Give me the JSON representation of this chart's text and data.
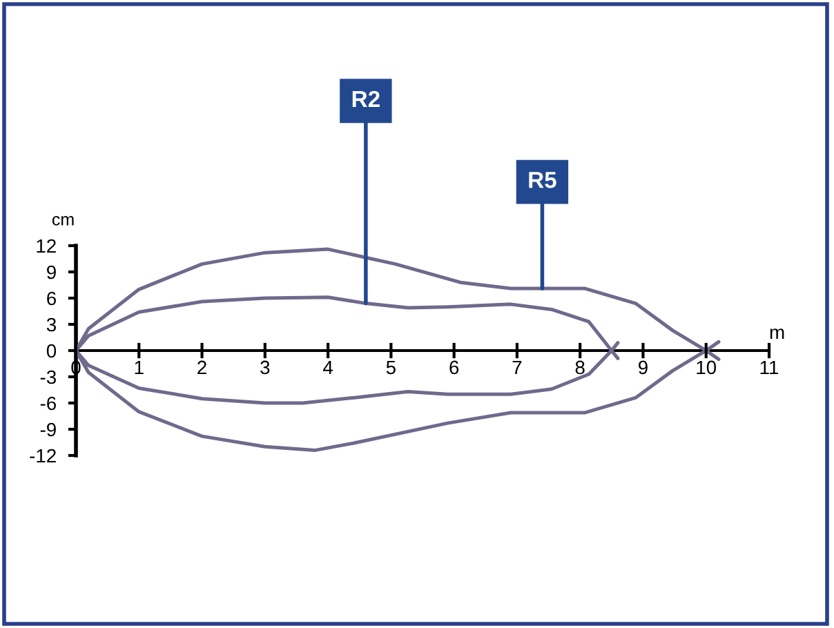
{
  "chart_data": {
    "type": "line",
    "xlabel": "m",
    "ylabel": "cm",
    "xlim": [
      0,
      11
    ],
    "ylim": [
      -12,
      12
    ],
    "xticks": [
      0,
      1,
      2,
      3,
      4,
      5,
      6,
      7,
      8,
      9,
      10,
      11
    ],
    "yticks": [
      -12,
      -9,
      -6,
      -3,
      0,
      3,
      6,
      9,
      12
    ],
    "annotations": [
      {
        "text": "R2",
        "x": 4.6,
        "y": 5.4
      },
      {
        "text": "R5",
        "x": 7.4,
        "y": 7.1
      }
    ],
    "series": [
      {
        "color": "#6f6a8c",
        "x": [
          0,
          0.2,
          1,
          2,
          3,
          4,
          4.6,
          5.27,
          5.9,
          6.9,
          7.55,
          8.14,
          8.5,
          8.6
        ],
        "values": [
          0,
          1.7,
          4.4,
          5.6,
          6.0,
          6.1,
          5.4,
          4.9,
          5.0,
          5.3,
          4.7,
          3.3,
          0,
          -0.9
        ]
      },
      {
        "color": "#6f6a8c",
        "x": [
          0,
          0.2,
          1,
          2,
          3,
          3.6,
          4.4,
          5.27,
          5.9,
          6.9,
          7.55,
          8.14,
          8.5,
          8.6
        ],
        "values": [
          0,
          -1.7,
          -4.3,
          -5.5,
          -6.0,
          -6.0,
          -5.4,
          -4.7,
          -5.0,
          -5.0,
          -4.4,
          -2.7,
          0,
          0.9
        ]
      },
      {
        "color": "#6f6a8c",
        "x": [
          0,
          0.2,
          1,
          2,
          3,
          4,
          5.07,
          6.1,
          6.9,
          8.08,
          8.88,
          9.47,
          10,
          10.2
        ],
        "values": [
          0,
          2.5,
          7.0,
          9.9,
          11.2,
          11.6,
          9.9,
          7.8,
          7.1,
          7.1,
          5.4,
          2.3,
          0,
          -1.0
        ]
      },
      {
        "color": "#6f6a8c",
        "x": [
          0,
          0.2,
          1,
          2,
          3,
          3.8,
          4.4,
          5.9,
          6.9,
          8.08,
          8.88,
          9.47,
          10,
          10.2
        ],
        "values": [
          0,
          -2.5,
          -7.0,
          -9.8,
          -11.0,
          -11.4,
          -10.6,
          -8.3,
          -7.1,
          -7.1,
          -5.4,
          -2.3,
          0,
          1.0
        ]
      }
    ]
  }
}
